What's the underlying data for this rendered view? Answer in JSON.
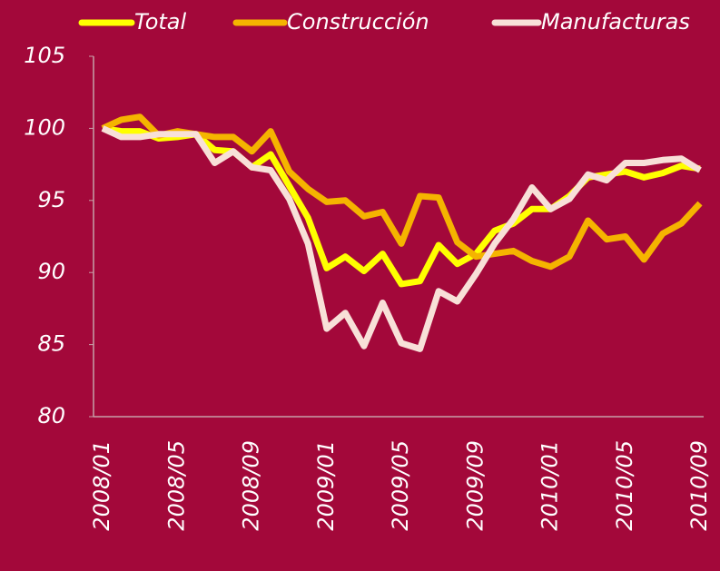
{
  "chart_data": {
    "type": "line",
    "categories": [
      "2008/01",
      null,
      null,
      null,
      "2008/05",
      null,
      null,
      null,
      "2008/09",
      null,
      null,
      null,
      "2009/01",
      null,
      null,
      null,
      "2009/05",
      null,
      null,
      null,
      "2009/09",
      null,
      null,
      null,
      "2010/01",
      null,
      null,
      null,
      "2010/05",
      null,
      null,
      null,
      "2010/09"
    ],
    "series": [
      {
        "name": "Total",
        "color": "#ffff00",
        "values": [
          100,
          99.8,
          99.8,
          99.3,
          99.4,
          99.6,
          98.5,
          98.4,
          97.3,
          98.2,
          96.0,
          93.8,
          90.3,
          91.1,
          90.1,
          91.3,
          89.2,
          89.4,
          91.9,
          90.6,
          91.3,
          92.9,
          93.4,
          94.4,
          94.4,
          95.3,
          96.6,
          96.8,
          97.0,
          96.6,
          96.9,
          97.4,
          97.2
        ]
      },
      {
        "name": "Construcción",
        "color": "#f5b400",
        "values": [
          100,
          100.6,
          100.8,
          99.5,
          99.8,
          99.6,
          99.4,
          99.4,
          98.4,
          99.8,
          97.0,
          95.8,
          94.9,
          95.0,
          93.9,
          94.2,
          92.0,
          95.3,
          95.2,
          92.1,
          91.1,
          91.3,
          91.5,
          90.8,
          90.4,
          91.1,
          93.6,
          92.3,
          92.5,
          90.9,
          92.7,
          93.4,
          94.8
        ]
      },
      {
        "name": "Manufacturas",
        "color": "#f8e0d8",
        "values": [
          100,
          99.4,
          99.4,
          99.6,
          99.6,
          99.6,
          97.6,
          98.4,
          97.3,
          97.1,
          95.1,
          92.0,
          86.1,
          87.2,
          84.9,
          87.9,
          85.1,
          84.7,
          88.7,
          88.0,
          89.9,
          92.0,
          93.7,
          95.9,
          94.4,
          95.1,
          96.8,
          96.4,
          97.6,
          97.6,
          97.8,
          97.9,
          97.1
        ]
      }
    ],
    "ylim": [
      80,
      105
    ],
    "yticks": [
      80,
      85,
      90,
      95,
      100,
      105
    ]
  }
}
